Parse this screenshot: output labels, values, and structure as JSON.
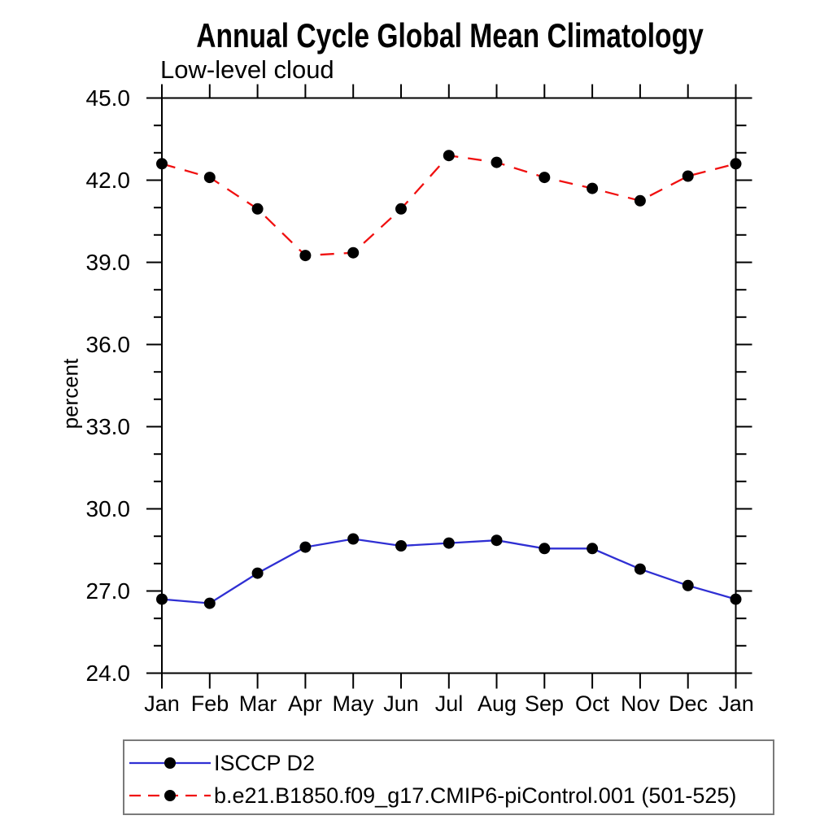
{
  "chart_data": {
    "type": "line",
    "title": "Annual Cycle Global Mean Climatology",
    "subtitle_left": "Low-level cloud",
    "ylabel": "percent",
    "x_categories": [
      "Jan",
      "Feb",
      "Mar",
      "Apr",
      "May",
      "Jun",
      "Jul",
      "Aug",
      "Sep",
      "Oct",
      "Nov",
      "Dec",
      "Jan"
    ],
    "ylim": [
      24.0,
      45.0
    ],
    "ytick_major_values": [
      45.0,
      42.0,
      39.0,
      36.0,
      33.0,
      30.0,
      27.0,
      24.0
    ],
    "ytick_major_labels": [
      "45.0",
      "42.0",
      "39.0",
      "36.0",
      "33.0",
      "30.0",
      "27.0",
      "24.0"
    ],
    "ytick_minor_step": 1.0,
    "grid": "off",
    "legend_position": "bottom-left-box",
    "axis_color": "#000000",
    "marker": "filled-circle",
    "marker_color": "#000000",
    "series": [
      {
        "name": "ISCCP D2",
        "color": "#2f2fd3",
        "line_style": "solid",
        "values": [
          26.7,
          26.55,
          27.65,
          28.6,
          28.9,
          28.65,
          28.75,
          28.85,
          28.55,
          28.55,
          27.8,
          27.2,
          26.7
        ]
      },
      {
        "name": "b.e21.B1850.f09_g17.CMIP6-piControl.001 (501-525)",
        "color": "#f01010",
        "line_style": "dashed",
        "values": [
          42.6,
          42.1,
          40.95,
          39.25,
          39.35,
          40.95,
          42.9,
          42.65,
          42.1,
          41.7,
          41.25,
          42.15,
          42.6
        ]
      }
    ]
  }
}
